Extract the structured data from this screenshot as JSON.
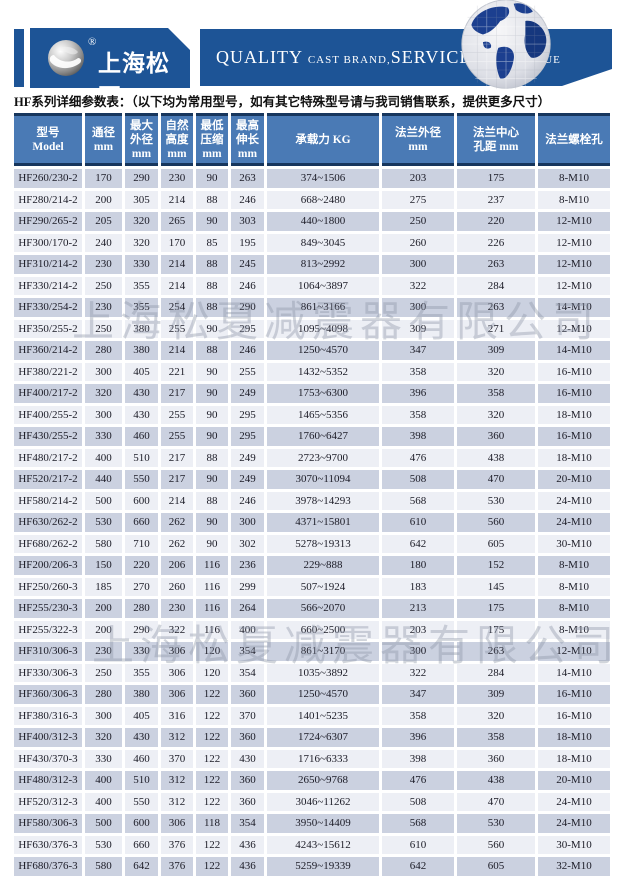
{
  "header": {
    "logo_text": "上海松夏",
    "registered_mark": "®",
    "slogan_segments": [
      {
        "text": "QUALITY ",
        "large": true
      },
      {
        "text": "CAST BRAND,",
        "large": false
      },
      {
        "text": "SERVICE ",
        "large": true
      },
      {
        "text": "CREAT VALUE",
        "large": false
      }
    ],
    "colors": {
      "banner_blue": "#1d5496",
      "table_header_blue": "#4a7ab5",
      "navy_line": "#17365d",
      "row_odd": "#cbd1e0",
      "row_even": "#edeff5"
    }
  },
  "intro_text": "HF系列详细参数表：（以下均为常用型号，如有其它特殊型号请与我司销售联系，提供更多尺寸）",
  "watermark_text": "上海松夏减震器有限公司",
  "table": {
    "columns": [
      {
        "id": "model",
        "lines": [
          "型号",
          "Model"
        ]
      },
      {
        "id": "bore",
        "lines": [
          "通径",
          "mm"
        ]
      },
      {
        "id": "max-od",
        "lines": [
          "最大",
          "外径",
          "mm"
        ]
      },
      {
        "id": "free-height",
        "lines": [
          "自然",
          "高度",
          "mm"
        ]
      },
      {
        "id": "min-compress",
        "lines": [
          "最低",
          "压缩",
          "mm"
        ]
      },
      {
        "id": "max-extend",
        "lines": [
          "最高",
          "伸长",
          "mm"
        ]
      },
      {
        "id": "load",
        "lines": [
          "承载力 KG"
        ]
      },
      {
        "id": "flange-od",
        "lines": [
          "法兰外径",
          "mm"
        ]
      },
      {
        "id": "flange-pitch",
        "lines": [
          "法兰中心",
          "孔距 mm"
        ]
      },
      {
        "id": "flange-bolts",
        "lines": [
          "法兰螺栓孔"
        ]
      }
    ],
    "rows": [
      [
        "HF260/230-2",
        "170",
        "290",
        "230",
        "90",
        "263",
        "374~1506",
        "203",
        "175",
        "8-M10"
      ],
      [
        "HF280/214-2",
        "200",
        "305",
        "214",
        "88",
        "246",
        "668~2480",
        "275",
        "237",
        "8-M10"
      ],
      [
        "HF290/265-2",
        "205",
        "320",
        "265",
        "90",
        "303",
        "440~1800",
        "250",
        "220",
        "12-M10"
      ],
      [
        "HF300/170-2",
        "240",
        "320",
        "170",
        "85",
        "195",
        "849~3045",
        "260",
        "226",
        "12-M10"
      ],
      [
        "HF310/214-2",
        "230",
        "330",
        "214",
        "88",
        "245",
        "813~2992",
        "300",
        "263",
        "12-M10"
      ],
      [
        "HF330/214-2",
        "250",
        "355",
        "214",
        "88",
        "246",
        "1064~3897",
        "322",
        "284",
        "12-M10"
      ],
      [
        "HF330/254-2",
        "230",
        "355",
        "254",
        "88",
        "290",
        "861~3166",
        "300",
        "263",
        "14-M10"
      ],
      [
        "HF350/255-2",
        "250",
        "380",
        "255",
        "90",
        "295",
        "1095~4098",
        "309",
        "271",
        "12-M10"
      ],
      [
        "HF360/214-2",
        "280",
        "380",
        "214",
        "88",
        "246",
        "1250~4570",
        "347",
        "309",
        "14-M10"
      ],
      [
        "HF380/221-2",
        "300",
        "405",
        "221",
        "90",
        "255",
        "1432~5352",
        "358",
        "320",
        "16-M10"
      ],
      [
        "HF400/217-2",
        "320",
        "430",
        "217",
        "90",
        "249",
        "1753~6300",
        "396",
        "358",
        "16-M10"
      ],
      [
        "HF400/255-2",
        "300",
        "430",
        "255",
        "90",
        "295",
        "1465~5356",
        "358",
        "320",
        "18-M10"
      ],
      [
        "HF430/255-2",
        "330",
        "460",
        "255",
        "90",
        "295",
        "1760~6427",
        "398",
        "360",
        "16-M10"
      ],
      [
        "HF480/217-2",
        "400",
        "510",
        "217",
        "88",
        "249",
        "2723~9700",
        "476",
        "438",
        "18-M10"
      ],
      [
        "HF520/217-2",
        "440",
        "550",
        "217",
        "90",
        "249",
        "3070~11094",
        "508",
        "470",
        "20-M10"
      ],
      [
        "HF580/214-2",
        "500",
        "600",
        "214",
        "88",
        "246",
        "3978~14293",
        "568",
        "530",
        "24-M10"
      ],
      [
        "HF630/262-2",
        "530",
        "660",
        "262",
        "90",
        "300",
        "4371~15801",
        "610",
        "560",
        "24-M10"
      ],
      [
        "HF680/262-2",
        "580",
        "710",
        "262",
        "90",
        "302",
        "5278~19313",
        "642",
        "605",
        "30-M10"
      ],
      [
        "HF200/206-3",
        "150",
        "220",
        "206",
        "116",
        "236",
        "229~888",
        "180",
        "152",
        "8-M10"
      ],
      [
        "HF250/260-3",
        "185",
        "270",
        "260",
        "116",
        "299",
        "507~1924",
        "183",
        "145",
        "8-M10"
      ],
      [
        "HF255/230-3",
        "200",
        "280",
        "230",
        "116",
        "264",
        "566~2070",
        "213",
        "175",
        "8-M10"
      ],
      [
        "HF255/322-3",
        "200",
        "290",
        "322",
        "116",
        "400",
        "660~2500",
        "203",
        "175",
        "8-M10"
      ],
      [
        "HF310/306-3",
        "230",
        "330",
        "306",
        "120",
        "354",
        "861~3170",
        "300",
        "263",
        "12-M10"
      ],
      [
        "HF330/306-3",
        "250",
        "355",
        "306",
        "120",
        "354",
        "1035~3892",
        "322",
        "284",
        "14-M10"
      ],
      [
        "HF360/306-3",
        "280",
        "380",
        "306",
        "122",
        "360",
        "1250~4570",
        "347",
        "309",
        "16-M10"
      ],
      [
        "HF380/316-3",
        "300",
        "405",
        "316",
        "122",
        "370",
        "1401~5235",
        "358",
        "320",
        "16-M10"
      ],
      [
        "HF400/312-3",
        "320",
        "430",
        "312",
        "122",
        "360",
        "1724~6307",
        "396",
        "358",
        "18-M10"
      ],
      [
        "HF430/370-3",
        "330",
        "460",
        "370",
        "122",
        "430",
        "1716~6333",
        "398",
        "360",
        "18-M10"
      ],
      [
        "HF480/312-3",
        "400",
        "510",
        "312",
        "122",
        "360",
        "2650~9768",
        "476",
        "438",
        "20-M10"
      ],
      [
        "HF520/312-3",
        "400",
        "550",
        "312",
        "122",
        "360",
        "3046~11262",
        "508",
        "470",
        "24-M10"
      ],
      [
        "HF580/306-3",
        "500",
        "600",
        "306",
        "118",
        "354",
        "3950~14409",
        "568",
        "530",
        "24-M10"
      ],
      [
        "HF630/376-3",
        "530",
        "660",
        "376",
        "122",
        "436",
        "4243~15612",
        "610",
        "560",
        "30-M10"
      ],
      [
        "HF680/376-3",
        "580",
        "642",
        "376",
        "122",
        "436",
        "5259~19339",
        "642",
        "605",
        "32-M10"
      ]
    ]
  }
}
